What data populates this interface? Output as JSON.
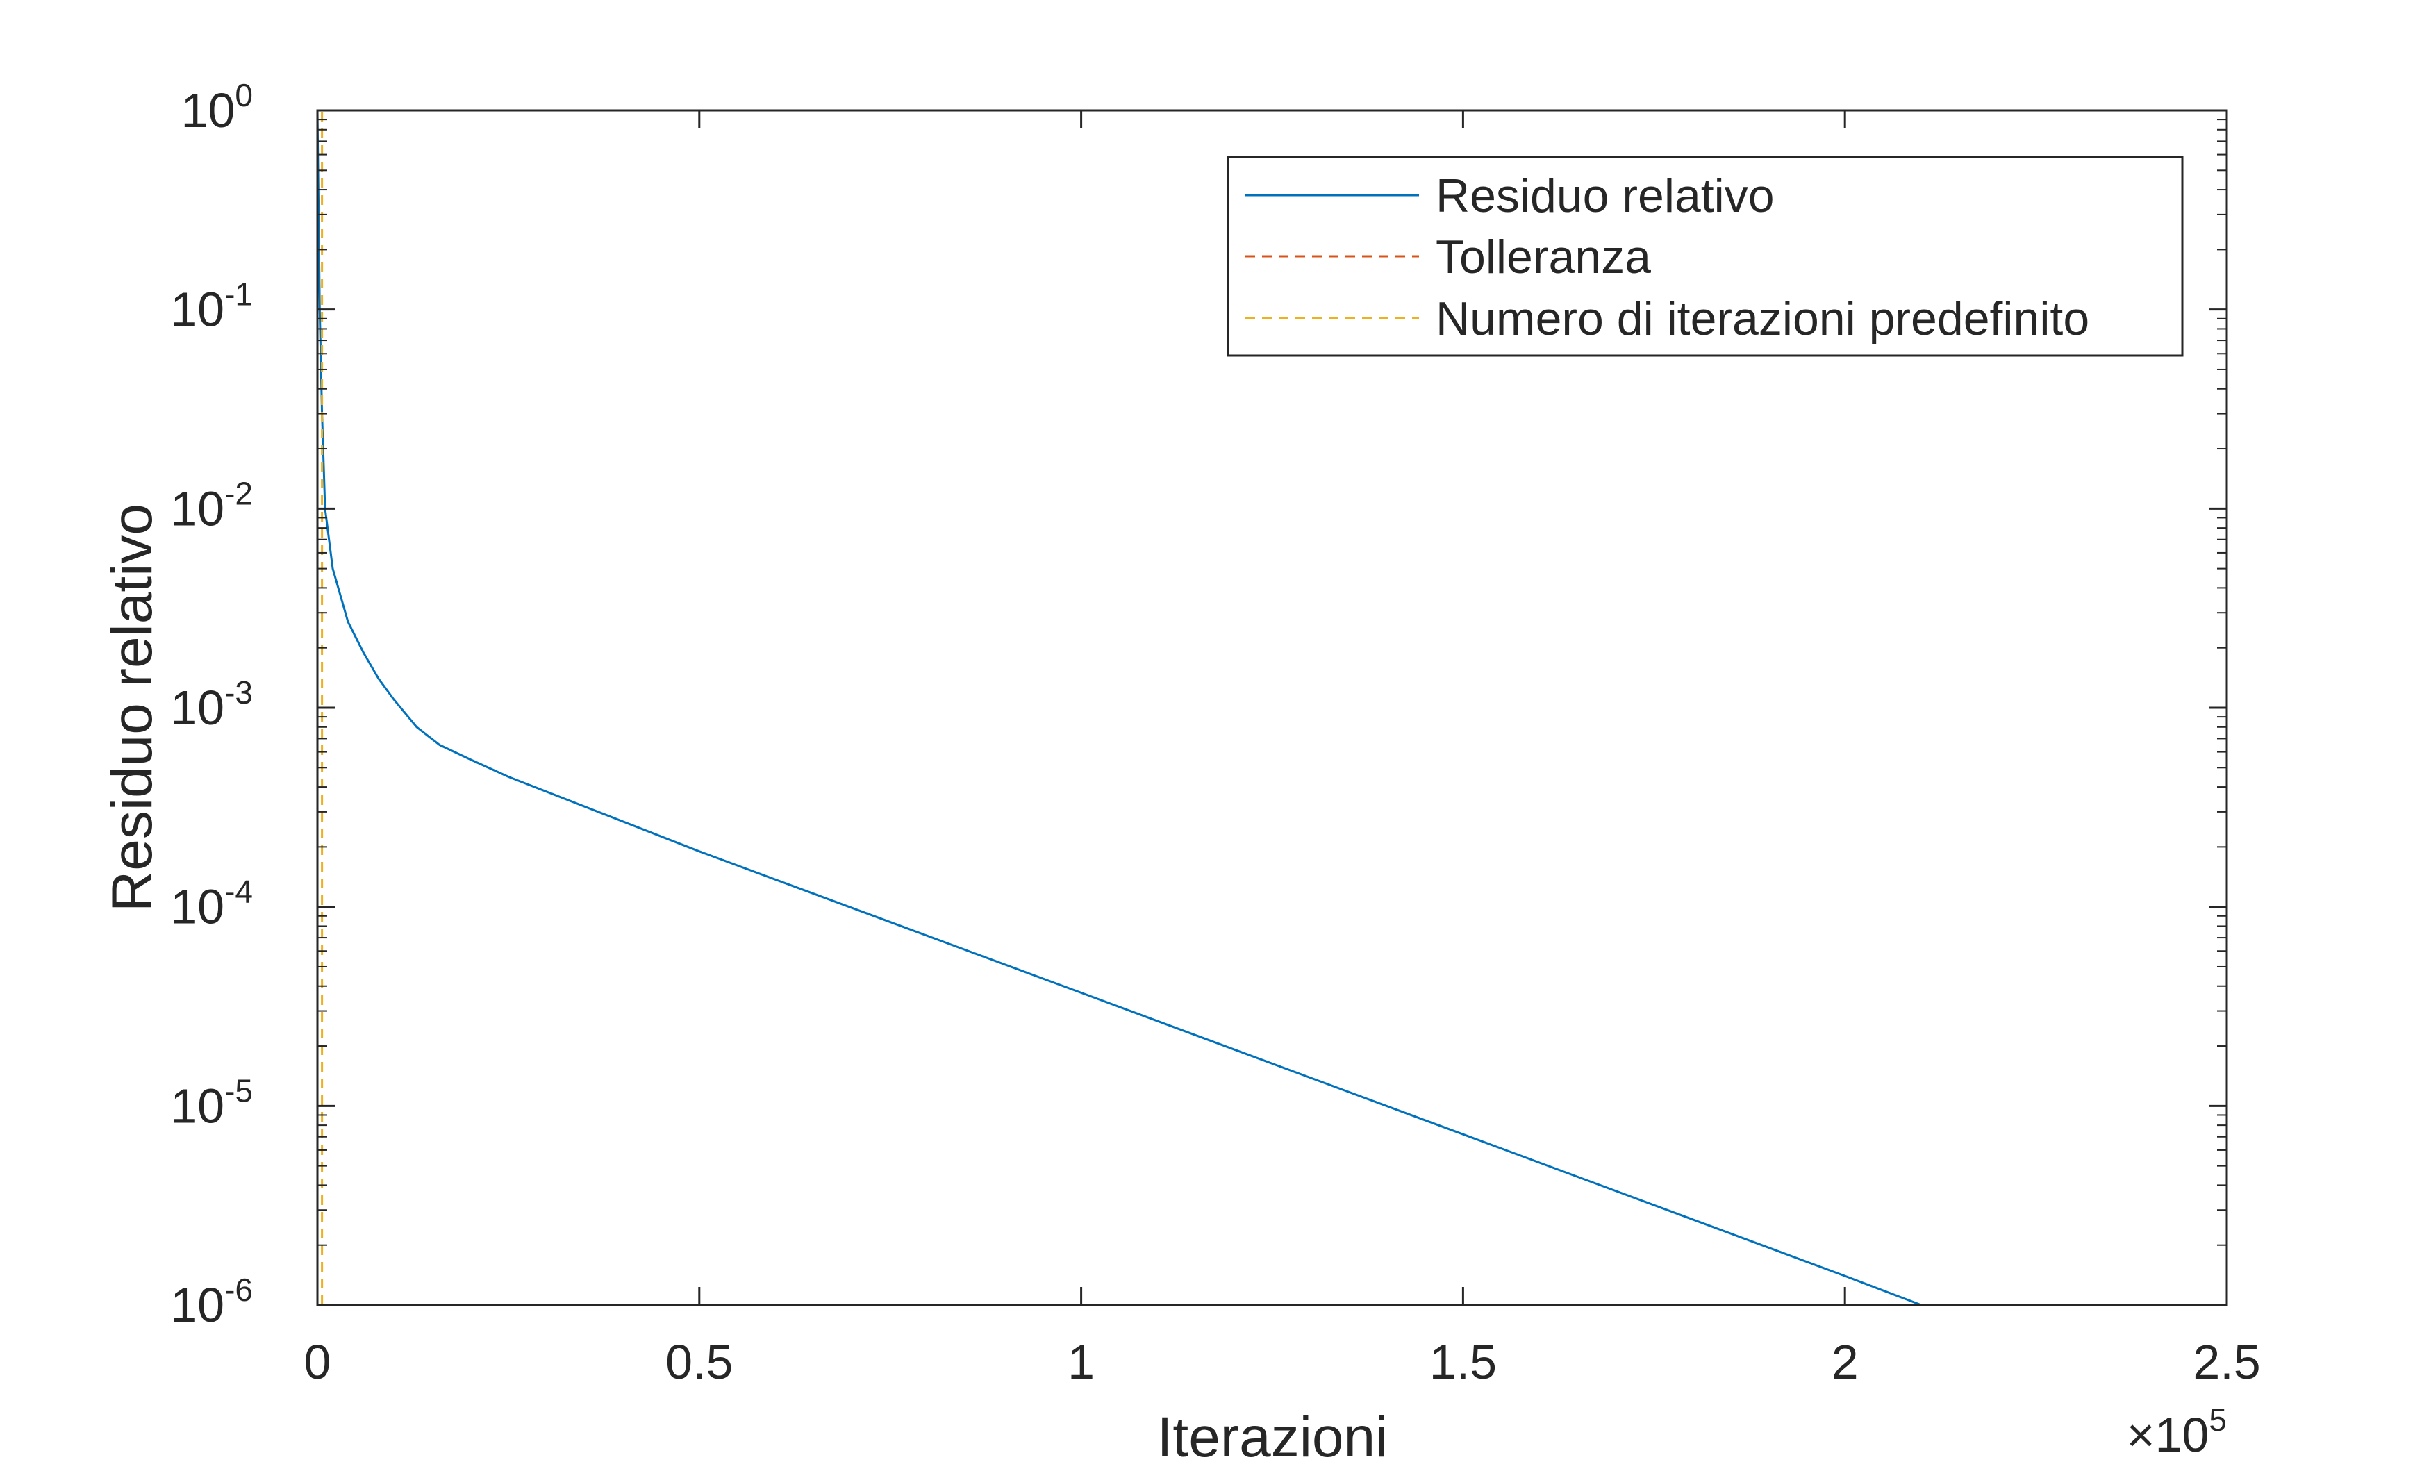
{
  "chart_data": {
    "type": "line",
    "title": "",
    "xlabel": "Iterazioni",
    "ylabel": "Residuo relativo",
    "x_scale": "linear",
    "y_scale": "log",
    "xlim": [
      0,
      250000
    ],
    "ylim": [
      1e-06,
      1
    ],
    "x_exponent_label": {
      "base": "×10",
      "exp": "5"
    },
    "x_ticks": [
      {
        "value": 0,
        "label": "0"
      },
      {
        "value": 50000,
        "label": "0.5"
      },
      {
        "value": 100000,
        "label": "1"
      },
      {
        "value": 150000,
        "label": "1.5"
      },
      {
        "value": 200000,
        "label": "2"
      },
      {
        "value": 250000,
        "label": "2.5"
      }
    ],
    "y_ticks": [
      {
        "value": 1,
        "base": "10",
        "exp": "0"
      },
      {
        "value": 0.1,
        "base": "10",
        "exp": "-1"
      },
      {
        "value": 0.01,
        "base": "10",
        "exp": "-2"
      },
      {
        "value": 0.001,
        "base": "10",
        "exp": "-3"
      },
      {
        "value": 0.0001,
        "base": "10",
        "exp": "-4"
      },
      {
        "value": 1e-05,
        "base": "10",
        "exp": "-5"
      },
      {
        "value": 1e-06,
        "base": "10",
        "exp": "-6"
      }
    ],
    "grid": false,
    "box": true,
    "legend_position": "top-right",
    "series": [
      {
        "name": "Residuo relativo",
        "color": "#0072BD",
        "style": "solid",
        "points": [
          [
            0,
            1
          ],
          [
            300,
            0.1
          ],
          [
            600,
            0.03
          ],
          [
            1000,
            0.01
          ],
          [
            2000,
            0.005
          ],
          [
            4000,
            0.0027
          ],
          [
            6000,
            0.0019
          ],
          [
            8000,
            0.0014
          ],
          [
            10000,
            0.0011
          ],
          [
            13000,
            0.0008
          ],
          [
            16000,
            0.00065
          ],
          [
            20000,
            0.00055
          ],
          [
            25000,
            0.00045
          ],
          [
            50000,
            0.00019
          ],
          [
            100000,
            3.7e-05
          ],
          [
            150000,
            7.2e-06
          ],
          [
            200000,
            1.4e-06
          ],
          [
            210000,
            1e-06
          ]
        ]
      },
      {
        "name": "Tolleranza",
        "color": "#D95319",
        "style": "dashed",
        "points": [
          [
            0,
            1e-06
          ],
          [
            250000,
            1e-06
          ]
        ]
      },
      {
        "name": "Numero di iterazioni predefinito",
        "color": "#EDB120",
        "style": "dashed",
        "points": [
          [
            600,
            1e-06
          ],
          [
            600,
            1
          ]
        ]
      }
    ]
  }
}
